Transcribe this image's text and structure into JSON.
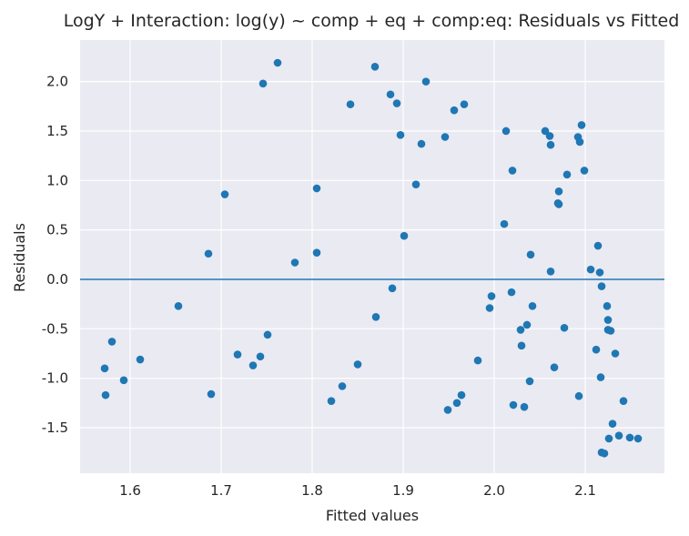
{
  "chart_data": {
    "type": "scatter",
    "title": "LogY + Interaction: log(y) ~ comp + eq + comp:eq: Residuals vs Fitted",
    "xlabel": "Fitted values",
    "ylabel": "Residuals",
    "xlim": [
      1.545,
      2.187
    ],
    "ylim": [
      -1.96,
      2.42
    ],
    "xticks": [
      "1.6",
      "1.7",
      "1.8",
      "1.9",
      "2.0",
      "2.1"
    ],
    "yticks": [
      "-1.5",
      "-1.0",
      "-0.5",
      "0.0",
      "0.5",
      "1.0",
      "1.5",
      "2.0"
    ],
    "grid": true,
    "reference_line": 0.0,
    "colors": {
      "background": "#eaeaf2",
      "grid": "#ffffff",
      "points": "#1f77b4",
      "line": "#1f77b4"
    },
    "points": [
      {
        "x": 1.572,
        "y": -0.9
      },
      {
        "x": 1.573,
        "y": -1.17
      },
      {
        "x": 1.58,
        "y": -0.63
      },
      {
        "x": 1.593,
        "y": -1.02
      },
      {
        "x": 1.611,
        "y": -0.81
      },
      {
        "x": 1.653,
        "y": -0.27
      },
      {
        "x": 1.686,
        "y": 0.26
      },
      {
        "x": 1.689,
        "y": -1.16
      },
      {
        "x": 1.704,
        "y": 0.86
      },
      {
        "x": 1.718,
        "y": -0.76
      },
      {
        "x": 1.735,
        "y": -0.87
      },
      {
        "x": 1.743,
        "y": -0.78
      },
      {
        "x": 1.746,
        "y": 1.98
      },
      {
        "x": 1.751,
        "y": -0.56
      },
      {
        "x": 1.762,
        "y": 2.19
      },
      {
        "x": 1.781,
        "y": 0.17
      },
      {
        "x": 1.805,
        "y": 0.92
      },
      {
        "x": 1.805,
        "y": 0.27
      },
      {
        "x": 1.821,
        "y": -1.23
      },
      {
        "x": 1.833,
        "y": -1.08
      },
      {
        "x": 1.842,
        "y": 1.77
      },
      {
        "x": 1.85,
        "y": -0.86
      },
      {
        "x": 1.869,
        "y": 2.15
      },
      {
        "x": 1.87,
        "y": -0.38
      },
      {
        "x": 1.886,
        "y": 1.87
      },
      {
        "x": 1.888,
        "y": -0.09
      },
      {
        "x": 1.893,
        "y": 1.78
      },
      {
        "x": 1.897,
        "y": 1.46
      },
      {
        "x": 1.901,
        "y": 0.44
      },
      {
        "x": 1.914,
        "y": 0.96
      },
      {
        "x": 1.92,
        "y": 1.37
      },
      {
        "x": 1.925,
        "y": 2.0
      },
      {
        "x": 1.946,
        "y": 1.44
      },
      {
        "x": 1.949,
        "y": -1.32
      },
      {
        "x": 1.956,
        "y": 1.71
      },
      {
        "x": 1.959,
        "y": -1.25
      },
      {
        "x": 1.964,
        "y": -1.17
      },
      {
        "x": 1.967,
        "y": 1.77
      },
      {
        "x": 1.982,
        "y": -0.82
      },
      {
        "x": 1.995,
        "y": -0.29
      },
      {
        "x": 1.997,
        "y": -0.17
      },
      {
        "x": 2.011,
        "y": 0.56
      },
      {
        "x": 2.013,
        "y": 1.5
      },
      {
        "x": 2.019,
        "y": -0.13
      },
      {
        "x": 2.02,
        "y": 1.1
      },
      {
        "x": 2.021,
        "y": -1.27
      },
      {
        "x": 2.029,
        "y": -0.51
      },
      {
        "x": 2.03,
        "y": -0.67
      },
      {
        "x": 2.033,
        "y": -1.29
      },
      {
        "x": 2.036,
        "y": -0.46
      },
      {
        "x": 2.039,
        "y": -1.03
      },
      {
        "x": 2.04,
        "y": 0.25
      },
      {
        "x": 2.042,
        "y": -0.27
      },
      {
        "x": 2.056,
        "y": 1.5
      },
      {
        "x": 2.061,
        "y": 1.45
      },
      {
        "x": 2.062,
        "y": 1.36
      },
      {
        "x": 2.062,
        "y": 0.08
      },
      {
        "x": 2.066,
        "y": -0.89
      },
      {
        "x": 2.07,
        "y": 0.77
      },
      {
        "x": 2.071,
        "y": 0.89
      },
      {
        "x": 2.071,
        "y": 0.76
      },
      {
        "x": 2.077,
        "y": -0.49
      },
      {
        "x": 2.08,
        "y": 1.06
      },
      {
        "x": 2.092,
        "y": 1.44
      },
      {
        "x": 2.093,
        "y": -1.18
      },
      {
        "x": 2.094,
        "y": 1.39
      },
      {
        "x": 2.096,
        "y": 1.56
      },
      {
        "x": 2.099,
        "y": 1.1
      },
      {
        "x": 2.106,
        "y": 0.1
      },
      {
        "x": 2.112,
        "y": -0.71
      },
      {
        "x": 2.114,
        "y": 0.34
      },
      {
        "x": 2.116,
        "y": 0.07
      },
      {
        "x": 2.117,
        "y": -0.99
      },
      {
        "x": 2.118,
        "y": -0.07
      },
      {
        "x": 2.118,
        "y": -1.75
      },
      {
        "x": 2.121,
        "y": -1.76
      },
      {
        "x": 2.124,
        "y": -0.27
      },
      {
        "x": 2.125,
        "y": -0.41
      },
      {
        "x": 2.125,
        "y": -0.51
      },
      {
        "x": 2.126,
        "y": -1.61
      },
      {
        "x": 2.128,
        "y": -0.52
      },
      {
        "x": 2.13,
        "y": -1.46
      },
      {
        "x": 2.133,
        "y": -0.75
      },
      {
        "x": 2.137,
        "y": -1.58
      },
      {
        "x": 2.142,
        "y": -1.23
      },
      {
        "x": 2.149,
        "y": -1.6
      },
      {
        "x": 2.158,
        "y": -1.61
      }
    ]
  }
}
